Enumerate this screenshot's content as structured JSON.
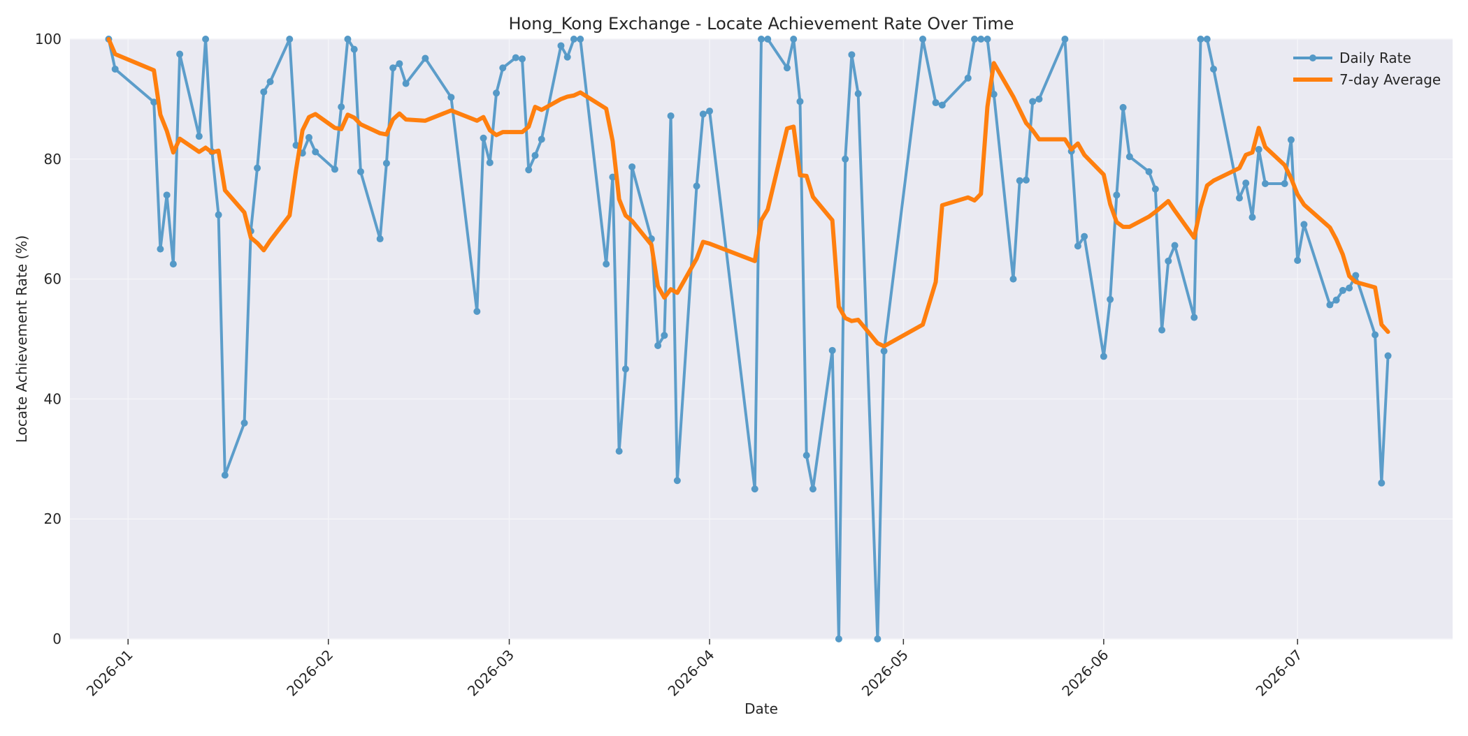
{
  "chart_data": {
    "type": "line",
    "title": "Hong_Kong Exchange - Locate Achievement Rate Over Time",
    "xlabel": "Date",
    "ylabel": "Locate Achievement Rate (%)",
    "ylim": [
      0,
      100
    ],
    "xlim": [
      "2025-12-23",
      "2026-07-25"
    ],
    "y_ticks": [
      0,
      20,
      40,
      60,
      80,
      100
    ],
    "x_ticks": [
      "2026-01",
      "2026-02",
      "2026-03",
      "2026-04",
      "2026-05",
      "2026-06",
      "2026-07"
    ],
    "grid": true,
    "legend": "top-right",
    "colors": {
      "plot_bg": "#EAEAF2",
      "grid": "#F4F4F8",
      "daily": "#5499C7",
      "avg": "#FF7F0E"
    },
    "series": [
      {
        "name": "Daily Rate",
        "marker": "circle",
        "x": [
          "2025-12-29",
          "2025-12-30",
          "2026-01-05",
          "2026-01-06",
          "2026-01-07",
          "2026-01-08",
          "2026-01-09",
          "2026-01-12",
          "2026-01-13",
          "2026-01-14",
          "2026-01-15",
          "2026-01-16",
          "2026-01-19",
          "2026-01-20",
          "2026-01-21",
          "2026-01-22",
          "2026-01-23",
          "2026-01-26",
          "2026-01-27",
          "2026-01-28",
          "2026-01-29",
          "2026-01-30",
          "2026-02-02",
          "2026-02-03",
          "2026-02-04",
          "2026-02-05",
          "2026-02-06",
          "2026-02-09",
          "2026-02-10",
          "2026-02-11",
          "2026-02-12",
          "2026-02-13",
          "2026-02-16",
          "2026-02-20",
          "2026-02-24",
          "2026-02-25",
          "2026-02-26",
          "2026-02-27",
          "2026-02-28",
          "2026-03-02",
          "2026-03-03",
          "2026-03-04",
          "2026-03-05",
          "2026-03-06",
          "2026-03-09",
          "2026-03-10",
          "2026-03-11",
          "2026-03-12",
          "2026-03-16",
          "2026-03-17",
          "2026-03-18",
          "2026-03-19",
          "2026-03-20",
          "2026-03-23",
          "2026-03-24",
          "2026-03-25",
          "2026-03-26",
          "2026-03-27",
          "2026-03-30",
          "2026-03-31",
          "2026-04-01",
          "2026-04-08",
          "2026-04-09",
          "2026-04-10",
          "2026-04-13",
          "2026-04-14",
          "2026-04-15",
          "2026-04-16",
          "2026-04-17",
          "2026-04-20",
          "2026-04-21",
          "2026-04-22",
          "2026-04-23",
          "2026-04-24",
          "2026-04-27",
          "2026-04-28",
          "2026-05-04",
          "2026-05-06",
          "2026-05-07",
          "2026-05-11",
          "2026-05-12",
          "2026-05-13",
          "2026-05-14",
          "2026-05-15",
          "2026-05-18",
          "2026-05-19",
          "2026-05-20",
          "2026-05-21",
          "2026-05-22",
          "2026-05-26",
          "2026-05-27",
          "2026-05-28",
          "2026-05-29",
          "2026-06-01",
          "2026-06-02",
          "2026-06-03",
          "2026-06-04",
          "2026-06-05",
          "2026-06-08",
          "2026-06-09",
          "2026-06-10",
          "2026-06-11",
          "2026-06-12",
          "2026-06-15",
          "2026-06-16",
          "2026-06-17",
          "2026-06-18",
          "2026-06-22",
          "2026-06-23",
          "2026-06-24",
          "2026-06-25",
          "2026-06-26",
          "2026-06-29",
          "2026-06-30",
          "2026-07-01",
          "2026-07-02",
          "2026-07-06",
          "2026-07-07",
          "2026-07-08",
          "2026-07-09",
          "2026-07-10",
          "2026-07-13",
          "2026-07-14",
          "2026-07-15"
        ],
        "values": [
          100,
          95,
          89.5,
          65,
          74,
          62.5,
          97.5,
          83.8,
          100,
          81.2,
          70.7,
          27.3,
          36,
          68,
          78.5,
          91.2,
          92.9,
          100,
          82.3,
          81,
          83.6,
          81.2,
          78.3,
          88.7,
          100,
          98.3,
          77.9,
          66.7,
          79.3,
          95.2,
          95.9,
          92.6,
          96.8,
          90.3,
          54.6,
          83.5,
          79.4,
          91,
          95.2,
          96.9,
          96.7,
          78.2,
          80.6,
          83.3,
          98.9,
          97,
          100,
          100,
          62.5,
          77,
          31.3,
          45,
          78.7,
          66.7,
          48.9,
          50.6,
          87.2,
          26.4,
          75.5,
          87.5,
          88,
          25,
          100,
          100,
          95.2,
          100,
          89.6,
          30.6,
          25,
          48.1,
          0,
          80,
          97.4,
          90.9,
          0,
          48,
          100,
          89.4,
          89,
          93.5,
          100,
          100,
          100,
          90.8,
          60,
          76.4,
          76.5,
          89.6,
          90,
          100,
          81.3,
          65.5,
          67.1,
          47.1,
          56.6,
          74,
          88.6,
          80.4,
          77.9,
          75,
          51.5,
          63,
          65.6,
          53.6,
          100,
          100,
          95,
          73.5,
          76,
          70.3,
          81.6,
          75.9,
          75.9,
          83.2,
          63.1,
          69.1,
          55.7,
          56.5,
          58.1,
          58.5,
          60.6,
          50.7,
          26,
          47.2
        ]
      },
      {
        "name": "7-day Average",
        "marker": "none",
        "x": [
          "2025-12-29",
          "2025-12-30",
          "2026-01-05",
          "2026-01-06",
          "2026-01-07",
          "2026-01-08",
          "2026-01-09",
          "2026-01-12",
          "2026-01-13",
          "2026-01-14",
          "2026-01-15",
          "2026-01-16",
          "2026-01-19",
          "2026-01-20",
          "2026-01-21",
          "2026-01-22",
          "2026-01-23",
          "2026-01-26",
          "2026-01-27",
          "2026-01-28",
          "2026-01-29",
          "2026-01-30",
          "2026-02-02",
          "2026-02-03",
          "2026-02-04",
          "2026-02-05",
          "2026-02-06",
          "2026-02-09",
          "2026-02-10",
          "2026-02-11",
          "2026-02-12",
          "2026-02-13",
          "2026-02-16",
          "2026-02-20",
          "2026-02-24",
          "2026-02-25",
          "2026-02-26",
          "2026-02-27",
          "2026-02-28",
          "2026-03-02",
          "2026-03-03",
          "2026-03-04",
          "2026-03-05",
          "2026-03-06",
          "2026-03-09",
          "2026-03-10",
          "2026-03-11",
          "2026-03-12",
          "2026-03-16",
          "2026-03-17",
          "2026-03-18",
          "2026-03-19",
          "2026-03-20",
          "2026-03-23",
          "2026-03-24",
          "2026-03-25",
          "2026-03-26",
          "2026-03-27",
          "2026-03-30",
          "2026-03-31",
          "2026-04-01",
          "2026-04-08",
          "2026-04-09",
          "2026-04-10",
          "2026-04-13",
          "2026-04-14",
          "2026-04-15",
          "2026-04-16",
          "2026-04-17",
          "2026-04-20",
          "2026-04-21",
          "2026-04-22",
          "2026-04-23",
          "2026-04-24",
          "2026-04-27",
          "2026-04-28",
          "2026-05-04",
          "2026-05-06",
          "2026-05-07",
          "2026-05-11",
          "2026-05-12",
          "2026-05-13",
          "2026-05-14",
          "2026-05-15",
          "2026-05-18",
          "2026-05-19",
          "2026-05-20",
          "2026-05-21",
          "2026-05-22",
          "2026-05-26",
          "2026-05-27",
          "2026-05-28",
          "2026-05-29",
          "2026-06-01",
          "2026-06-02",
          "2026-06-03",
          "2026-06-04",
          "2026-06-05",
          "2026-06-08",
          "2026-06-09",
          "2026-06-10",
          "2026-06-11",
          "2026-06-12",
          "2026-06-15",
          "2026-06-16",
          "2026-06-17",
          "2026-06-18",
          "2026-06-22",
          "2026-06-23",
          "2026-06-24",
          "2026-06-25",
          "2026-06-26",
          "2026-06-29",
          "2026-06-30",
          "2026-07-01",
          "2026-07-02",
          "2026-07-06",
          "2026-07-07",
          "2026-07-08",
          "2026-07-09",
          "2026-07-10",
          "2026-07-13",
          "2026-07-14",
          "2026-07-15"
        ],
        "values": [
          100,
          97.5,
          94.8,
          87.4,
          84.7,
          81.1,
          83.4,
          81.2,
          81.9,
          81.1,
          81.4,
          74.8,
          71.1,
          66.9,
          66,
          64.8,
          66.4,
          70.6,
          78.2,
          84.8,
          87,
          87.5,
          85.2,
          85,
          87.4,
          86.9,
          85.8,
          84.3,
          84.1,
          86.6,
          87.6,
          86.6,
          86.4,
          88.1,
          86.4,
          87,
          84.8,
          84,
          84.5,
          84.5,
          84.5,
          85.4,
          88.7,
          88.2,
          90,
          90.4,
          90.6,
          91.1,
          88.4,
          83,
          73.3,
          70.6,
          69.7,
          65.7,
          58.8,
          56.9,
          58.3,
          57.7,
          63.4,
          66.2,
          65.9,
          63,
          69.8,
          71.6,
          85.1,
          85.4,
          77.3,
          77.2,
          73.7,
          69.8,
          55.4,
          53.5,
          53,
          53.2,
          49.3,
          48.8,
          52.4,
          59.5,
          72.3,
          73.6,
          73.1,
          74.2,
          88.7,
          96,
          90.4,
          88.2,
          86,
          84.8,
          83.3,
          83.3,
          81.6,
          82.6,
          80.7,
          77.4,
          72.5,
          69.5,
          68.7,
          68.7,
          70.4,
          71.2,
          72.1,
          73,
          71.4,
          66.9,
          71.9,
          75.6,
          76.4,
          78.5,
          80.7,
          81.1,
          85.2,
          82,
          79,
          76.8,
          74.1,
          72.4,
          68.6,
          66.6,
          64.1,
          60.5,
          59.5,
          58.6,
          52.4,
          51.2
        ]
      }
    ]
  }
}
